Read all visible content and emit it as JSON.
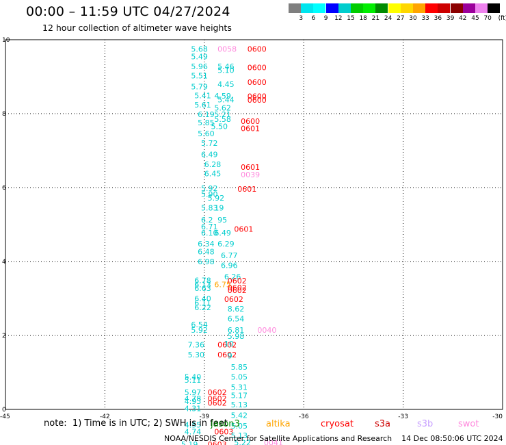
{
  "title": "00:00 – 11:59 UTC 04/27/2024",
  "subtitle": "12 hour collection of altimeter wave heights",
  "colorbar": {
    "labels": [
      "3",
      "6",
      "9",
      "12",
      "15",
      "18",
      "21",
      "24",
      "27",
      "30",
      "33",
      "36",
      "39",
      "42",
      "45",
      "70"
    ],
    "unit": "(ft)",
    "colors": [
      "#7f7f7f",
      "#00e5ee",
      "#00ffff",
      "#0000ff",
      "#00cdcd",
      "#00cc00",
      "#00ee00",
      "#008b00",
      "#ffff00",
      "#ffd700",
      "#ffa500",
      "#ff0000",
      "#cd0000",
      "#8b0000",
      "#9b009b",
      "#ee82ee",
      "#000000"
    ]
  },
  "axes": {
    "x_ticks": [
      "-45",
      "-42",
      "-39",
      "-36",
      "-33",
      "-30"
    ],
    "y_ticks": [
      "0",
      "2",
      "4",
      "6",
      "8",
      "10"
    ],
    "x_range": [
      -45,
      -30
    ],
    "y_range": [
      0,
      10
    ]
  },
  "satellite_colors": {
    "jason3": "#008b00",
    "altika": "#ffa500",
    "cryosat": "#ff0000",
    "s3a": "#cd0000",
    "s3b": "#c8a0ff",
    "swot": "#ff88dd",
    "data": "#00cdcd"
  },
  "points": [
    {
      "lon": -39.4,
      "lat": 9.75,
      "t": "5.68",
      "c": "data"
    },
    {
      "lon": -39.4,
      "lat": 9.55,
      "t": "5.49",
      "c": "data"
    },
    {
      "lon": -38.6,
      "lat": 9.75,
      "t": "0058",
      "c": "swot"
    },
    {
      "lon": -37.7,
      "lat": 9.75,
      "t": "0600",
      "c": "cryosat"
    },
    {
      "lon": -39.4,
      "lat": 9.28,
      "t": "5.96",
      "c": "data"
    },
    {
      "lon": -38.6,
      "lat": 9.28,
      "t": "5.46",
      "c": "data"
    },
    {
      "lon": -38.6,
      "lat": 9.18,
      "t": "5.10",
      "c": "data"
    },
    {
      "lon": -37.7,
      "lat": 9.25,
      "t": "0600",
      "c": "cryosat"
    },
    {
      "lon": -39.4,
      "lat": 9.03,
      "t": "5.51",
      "c": "data"
    },
    {
      "lon": -39.4,
      "lat": 8.73,
      "t": "5.79",
      "c": "data"
    },
    {
      "lon": -38.6,
      "lat": 8.8,
      "t": "4.45",
      "c": "data"
    },
    {
      "lon": -37.7,
      "lat": 8.85,
      "t": "0600",
      "c": "cryosat"
    },
    {
      "lon": -39.3,
      "lat": 8.49,
      "t": "5.41",
      "c": "data"
    },
    {
      "lon": -38.7,
      "lat": 8.48,
      "t": "4.59",
      "c": "data"
    },
    {
      "lon": -38.6,
      "lat": 8.38,
      "t": "5.44",
      "c": "data"
    },
    {
      "lon": -37.7,
      "lat": 8.47,
      "t": "0600",
      "c": "cryosat"
    },
    {
      "lon": -37.7,
      "lat": 8.37,
      "t": "0600",
      "c": "cryosat"
    },
    {
      "lon": -39.3,
      "lat": 8.24,
      "t": "5.61",
      "c": "data"
    },
    {
      "lon": -38.7,
      "lat": 8.16,
      "t": "5.62",
      "c": "data"
    },
    {
      "lon": -39.2,
      "lat": 7.98,
      "t": "6.19",
      "c": "data"
    },
    {
      "lon": -38.7,
      "lat": 7.98,
      "t": "5.21",
      "c": "data"
    },
    {
      "lon": -38.7,
      "lat": 7.85,
      "t": "5.58",
      "c": "data"
    },
    {
      "lon": -39.2,
      "lat": 7.76,
      "t": "5.85",
      "c": "data"
    },
    {
      "lon": -38.8,
      "lat": 7.66,
      "t": "5.50",
      "c": "data"
    },
    {
      "lon": -37.9,
      "lat": 7.8,
      "t": "0600",
      "c": "cryosat"
    },
    {
      "lon": -37.9,
      "lat": 7.6,
      "t": "0601",
      "c": "cryosat"
    },
    {
      "lon": -39.2,
      "lat": 7.46,
      "t": "5.60",
      "c": "data"
    },
    {
      "lon": -39.1,
      "lat": 7.2,
      "t": "5.72",
      "c": "data"
    },
    {
      "lon": -39.1,
      "lat": 6.9,
      "t": "6.49",
      "c": "data"
    },
    {
      "lon": -39.0,
      "lat": 6.63,
      "t": "6.28",
      "c": "data"
    },
    {
      "lon": -39.0,
      "lat": 6.38,
      "t": "6.45",
      "c": "data"
    },
    {
      "lon": -37.9,
      "lat": 6.56,
      "t": "0601",
      "c": "cryosat"
    },
    {
      "lon": -37.9,
      "lat": 6.35,
      "t": "0039",
      "c": "swot"
    },
    {
      "lon": -39.1,
      "lat": 5.98,
      "t": "5.92",
      "c": "data"
    },
    {
      "lon": -39.1,
      "lat": 5.82,
      "t": "5.90",
      "c": "data"
    },
    {
      "lon": -38.9,
      "lat": 5.72,
      "t": "5.92",
      "c": "data"
    },
    {
      "lon": -38.0,
      "lat": 5.96,
      "t": "0601",
      "c": "cryosat"
    },
    {
      "lon": -39.1,
      "lat": 5.45,
      "t": "5.83",
      "c": "data"
    },
    {
      "lon": -38.7,
      "lat": 5.45,
      "t": "19",
      "c": "data"
    },
    {
      "lon": -39.1,
      "lat": 5.13,
      "t": "6.2",
      "c": "data"
    },
    {
      "lon": -38.6,
      "lat": 5.13,
      "t": "95",
      "c": "data"
    },
    {
      "lon": -39.1,
      "lat": 4.94,
      "t": "6.71",
      "c": "data"
    },
    {
      "lon": -39.1,
      "lat": 4.78,
      "t": "6.10",
      "c": "data"
    },
    {
      "lon": -38.7,
      "lat": 4.78,
      "t": "6.49",
      "c": "data"
    },
    {
      "lon": -38.1,
      "lat": 4.88,
      "t": "0601",
      "c": "cryosat"
    },
    {
      "lon": -39.2,
      "lat": 4.48,
      "t": "6.34",
      "c": "data"
    },
    {
      "lon": -38.6,
      "lat": 4.48,
      "t": "6.29",
      "c": "data"
    },
    {
      "lon": -39.2,
      "lat": 4.27,
      "t": "6.48",
      "c": "data"
    },
    {
      "lon": -38.5,
      "lat": 4.17,
      "t": "6.77",
      "c": "data"
    },
    {
      "lon": -39.2,
      "lat": 4.0,
      "t": "6.98",
      "c": "data"
    },
    {
      "lon": -38.5,
      "lat": 3.9,
      "t": "6.96",
      "c": "data"
    },
    {
      "lon": -38.4,
      "lat": 3.59,
      "t": "6.26",
      "c": "data"
    },
    {
      "lon": -39.3,
      "lat": 3.49,
      "t": "6.78",
      "c": "data"
    },
    {
      "lon": -39.3,
      "lat": 3.38,
      "t": "6.13",
      "c": "data"
    },
    {
      "lon": -39.3,
      "lat": 3.28,
      "t": "6.63",
      "c": "data"
    },
    {
      "lon": -38.7,
      "lat": 3.38,
      "t": "6.75",
      "c": "altika"
    },
    {
      "lon": -38.3,
      "lat": 3.48,
      "t": "0602",
      "c": "cryosat"
    },
    {
      "lon": -38.3,
      "lat": 3.3,
      "t": "0602",
      "c": "cryosat"
    },
    {
      "lon": -38.3,
      "lat": 3.22,
      "t": "0602",
      "c": "cryosat"
    },
    {
      "lon": -39.3,
      "lat": 3.0,
      "t": "6.40",
      "c": "data"
    },
    {
      "lon": -39.3,
      "lat": 2.88,
      "t": "6.11",
      "c": "data"
    },
    {
      "lon": -39.3,
      "lat": 2.76,
      "t": "6.22",
      "c": "data"
    },
    {
      "lon": -38.4,
      "lat": 2.98,
      "t": "0602",
      "c": "cryosat"
    },
    {
      "lon": -38.3,
      "lat": 2.72,
      "t": "8.62",
      "c": "data"
    },
    {
      "lon": -38.3,
      "lat": 2.45,
      "t": "6.54",
      "c": "data"
    },
    {
      "lon": -39.4,
      "lat": 2.3,
      "t": "6.54",
      "c": "data"
    },
    {
      "lon": -39.4,
      "lat": 2.15,
      "t": "5.92",
      "c": "data"
    },
    {
      "lon": -38.3,
      "lat": 2.15,
      "t": "6.81",
      "c": "data"
    },
    {
      "lon": -38.3,
      "lat": 1.98,
      "t": "5.98",
      "c": "data"
    },
    {
      "lon": -37.4,
      "lat": 2.15,
      "t": "0040",
      "c": "swot"
    },
    {
      "lon": -39.5,
      "lat": 1.75,
      "t": "7.36",
      "c": "data"
    },
    {
      "lon": -38.6,
      "lat": 1.75,
      "t": "0602",
      "c": "cryosat"
    },
    {
      "lon": -38.4,
      "lat": 1.78,
      "t": "10",
      "c": "data"
    },
    {
      "lon": -39.5,
      "lat": 1.48,
      "t": "5.30",
      "c": "data"
    },
    {
      "lon": -38.6,
      "lat": 1.48,
      "t": "0602",
      "c": "cryosat"
    },
    {
      "lon": -38.3,
      "lat": 1.45,
      "t": "9",
      "c": "data"
    },
    {
      "lon": -38.2,
      "lat": 1.15,
      "t": "5.85",
      "c": "data"
    },
    {
      "lon": -39.6,
      "lat": 0.88,
      "t": "5.40",
      "c": "data"
    },
    {
      "lon": -39.6,
      "lat": 0.8,
      "t": "5.11",
      "c": "data"
    },
    {
      "lon": -38.2,
      "lat": 0.88,
      "t": "5.05",
      "c": "data"
    },
    {
      "lon": -38.2,
      "lat": 0.6,
      "t": "5.31",
      "c": "data"
    },
    {
      "lon": -39.6,
      "lat": 0.46,
      "t": "5.97",
      "c": "data"
    },
    {
      "lon": -38.9,
      "lat": 0.46,
      "t": "0602",
      "c": "cryosat"
    },
    {
      "lon": -38.2,
      "lat": 0.38,
      "t": "5.17",
      "c": "data"
    },
    {
      "lon": -39.6,
      "lat": 0.3,
      "t": "4.78",
      "c": "data"
    },
    {
      "lon": -39.6,
      "lat": 0.22,
      "t": "4.93",
      "c": "data"
    },
    {
      "lon": -38.9,
      "lat": 0.3,
      "t": "0602",
      "c": "cryosat"
    },
    {
      "lon": -38.9,
      "lat": 0.18,
      "t": "0602",
      "c": "cryosat"
    },
    {
      "lon": -38.2,
      "lat": 0.13,
      "t": "5.13",
      "c": "data"
    },
    {
      "lon": -39.6,
      "lat": 0.03,
      "t": "4.31",
      "c": "data"
    },
    {
      "lon": -38.2,
      "lat": -0.16,
      "t": "5.42",
      "c": "data"
    },
    {
      "lon": -39.6,
      "lat": -0.42,
      "t": "4.55",
      "c": "data"
    },
    {
      "lon": -39.6,
      "lat": -0.6,
      "t": "4.74",
      "c": "data"
    },
    {
      "lon": -38.2,
      "lat": -0.44,
      "t": "5.05",
      "c": "data"
    },
    {
      "lon": -38.7,
      "lat": -0.6,
      "t": "0603",
      "c": "cryosat"
    },
    {
      "lon": -38.2,
      "lat": -0.7,
      "t": "5.13",
      "c": "data"
    },
    {
      "lon": -39.7,
      "lat": -0.94,
      "t": "5.19",
      "c": "data"
    },
    {
      "lon": -38.9,
      "lat": -0.94,
      "t": "0603",
      "c": "cryosat"
    },
    {
      "lon": -38.1,
      "lat": -0.9,
      "t": "5.22",
      "c": "data"
    },
    {
      "lon": -37.2,
      "lat": -0.9,
      "t": "0041",
      "c": "swot"
    }
  ],
  "footer_note": "note:  1) Time is in UTC; 2) SWH is in feet",
  "legend": [
    {
      "label": "jason3",
      "color": "#008b00"
    },
    {
      "label": "altika",
      "color": "#ffa500"
    },
    {
      "label": "cryosat",
      "color": "#ff0000"
    },
    {
      "label": "s3a",
      "color": "#cd0000"
    },
    {
      "label": "s3b",
      "color": "#c8a0ff"
    },
    {
      "label": "swot",
      "color": "#ff88dd"
    }
  ],
  "credit": "NOAA/NESDIS Center for Satellite Applications and Research    14 Dec 08:50:06 UTC 2024"
}
